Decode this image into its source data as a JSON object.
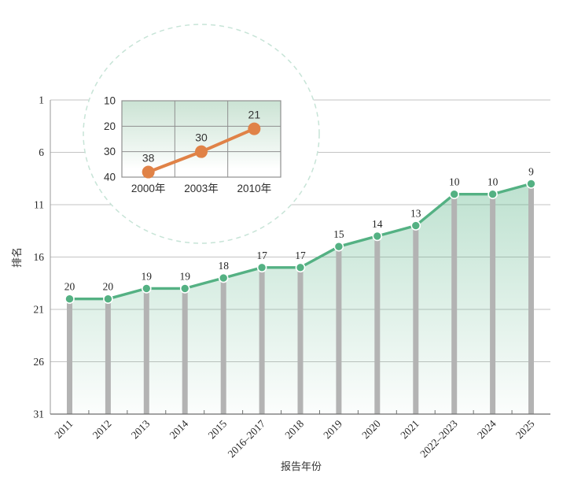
{
  "figure": {
    "type": "ranking-trend-figure"
  },
  "chart_data": [
    {
      "id": "main",
      "type": "line",
      "title": "",
      "xlabel": "报告年份",
      "ylabel": "排名",
      "categories": [
        "2011",
        "2012",
        "2013",
        "2014",
        "2015",
        "2016–2017",
        "2018",
        "2019",
        "2020",
        "2021",
        "2022–2023",
        "2024",
        "2025"
      ],
      "series": [
        {
          "name": "排名",
          "values": [
            20,
            20,
            19,
            19,
            18,
            17,
            17,
            15,
            14,
            13,
            10,
            10,
            9
          ]
        }
      ],
      "data_labels": [
        "20",
        "20",
        "19",
        "19",
        "18",
        "17",
        "17",
        "15",
        "14",
        "13",
        "10",
        "10",
        "9"
      ],
      "y_ticks": [
        1,
        6,
        11,
        16,
        21,
        26,
        31
      ],
      "ylim": [
        1,
        31
      ],
      "y_axis_inverted": true,
      "grid": true,
      "legend": "none",
      "style": {
        "line_color": "#54b183",
        "marker_color": "#54b183",
        "marker_border": "#ffffff",
        "stem_color": "#b3b3b3",
        "area_color": "#54b183",
        "grid_color": "#c3c3c3",
        "axis_color": "#9a9a9a",
        "bottom_axis_color": "#6e6e6e"
      }
    },
    {
      "id": "inset",
      "type": "line",
      "title": "",
      "xlabel": "",
      "ylabel": "",
      "categories": [
        "2000年",
        "2003年",
        "2010年"
      ],
      "series": [
        {
          "name": "排名",
          "values": [
            38,
            30,
            21
          ]
        }
      ],
      "data_labels": [
        "38",
        "30",
        "21"
      ],
      "y_ticks": [
        10,
        20,
        30,
        40
      ],
      "ylim": [
        10,
        40
      ],
      "y_axis_inverted": true,
      "grid": true,
      "legend": "none",
      "style": {
        "line_color": "#e08247",
        "marker_color": "#e08247",
        "bg_top": "#cbe3d4",
        "bg_bottom": "#ffffff",
        "border_color": "#8f8f8f"
      }
    }
  ],
  "decorations": {
    "inset_circle": {
      "fill": "#ffffff",
      "stroke": "#c7e4d7",
      "dashed": true
    }
  }
}
